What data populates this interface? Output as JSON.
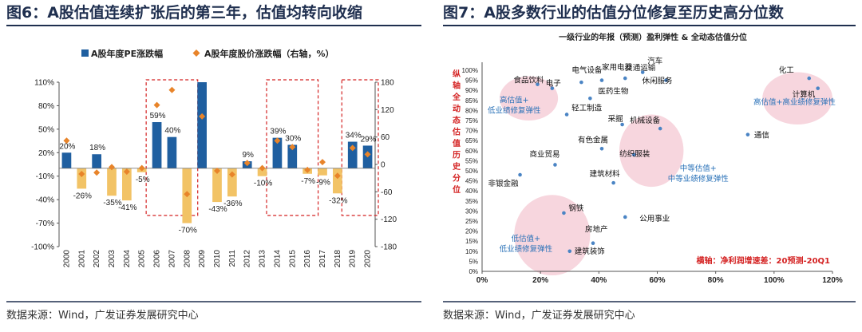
{
  "left": {
    "title": "图6：A股估值连续扩张后的第三年，估值均转向收缩",
    "source": "数据来源：Wind，广发证券发展研究中心",
    "chart_data": {
      "type": "bar",
      "categories": [
        "2000",
        "2001",
        "2002",
        "2003",
        "2004",
        "2005",
        "2006",
        "2007",
        "2008",
        "2009",
        "2010",
        "2011",
        "2012",
        "2013",
        "2014",
        "2015",
        "2016",
        "2017",
        "2018",
        "2019",
        "2020"
      ],
      "series": [
        {
          "name": "A股年度PE涨跌幅",
          "axis": "left",
          "color": "#1f5fa0",
          "values": [
            20,
            -26,
            18,
            -35,
            -41,
            -5,
            59,
            40,
            -70,
            110,
            -43,
            -36,
            9,
            -10,
            39,
            30,
            -7,
            -9,
            -32,
            34,
            29
          ],
          "value_labels": [
            "20%",
            "-26%",
            "18%",
            "-35%",
            "-41%",
            "-5%",
            "59%",
            "40%",
            "-70%",
            "",
            "-43%",
            "-36%",
            "9%",
            "-10%",
            "39%",
            "30%",
            "-7%",
            "-9%",
            "-32%",
            "34%",
            "29%"
          ]
        },
        {
          "name": "A股年度股价涨跌幅（右轴，%）",
          "axis": "right",
          "color": "#e8842a",
          "values": [
            52,
            -21,
            -18,
            -6,
            -16,
            -8,
            130,
            163,
            -65,
            105,
            -14,
            -22,
            3,
            -8,
            52,
            38,
            -12,
            5,
            -25,
            36,
            22
          ]
        }
      ],
      "left_axis": {
        "min": -100,
        "max": 110,
        "ticks": [
          "110%",
          "80%",
          "50%",
          "20%",
          "-10%",
          "-40%",
          "-70%",
          "-100%"
        ]
      },
      "right_axis": {
        "min": -180,
        "max": 180,
        "ticks": [
          "180",
          "120",
          "60",
          "0",
          "-60",
          "-120",
          "-180"
        ]
      },
      "legend_position": "top",
      "highlight_periods": [
        [
          "2006",
          "2008"
        ],
        [
          "2014",
          "2016"
        ],
        [
          "2019",
          "2020"
        ]
      ]
    }
  },
  "right": {
    "title": "图7：A股多数行业的估值分位修复至历史高分位数",
    "source": "数据来源：Wind，广发证券发展研究中心",
    "chart_data": {
      "type": "scatter",
      "title": "一级行业的年报（预测）盈利弹性 & 全动态估值分位",
      "xlabel": "横轴：净利润增速差：20预测-20Q1",
      "ylabel": "纵轴：全动态估值历史分位",
      "x_ticks": [
        "0%",
        "20%",
        "40%",
        "60%",
        "80%",
        "100%",
        "120%"
      ],
      "y_ticks": [
        "0%",
        "5%",
        "10%",
        "15%",
        "20%",
        "25%",
        "30%",
        "35%",
        "40%",
        "45%",
        "50%",
        "55%",
        "60%",
        "65%",
        "70%",
        "75%",
        "80%",
        "85%",
        "90%",
        "95%",
        "100%"
      ],
      "xlim": [
        0,
        1.2
      ],
      "ylim": [
        0,
        1.0
      ],
      "points": [
        {
          "name": "电气设备",
          "x": 0.34,
          "y": 0.94
        },
        {
          "name": "家用电器",
          "x": 0.41,
          "y": 0.95
        },
        {
          "name": "交通运输",
          "x": 0.49,
          "y": 0.96
        },
        {
          "name": "汽车",
          "x": 0.55,
          "y": 0.99
        },
        {
          "name": "休闲服务",
          "x": 0.63,
          "y": 0.95
        },
        {
          "name": "食品饮料",
          "x": 0.19,
          "y": 0.93
        },
        {
          "name": "电子",
          "x": 0.24,
          "y": 0.91
        },
        {
          "name": "医药生物",
          "x": 0.37,
          "y": 0.86
        },
        {
          "name": "轻工制造",
          "x": 0.29,
          "y": 0.78
        },
        {
          "name": "采掘",
          "x": 0.48,
          "y": 0.73
        },
        {
          "name": "机械设备",
          "x": 0.61,
          "y": 0.71
        },
        {
          "name": "有色金属",
          "x": 0.41,
          "y": 0.61
        },
        {
          "name": "纺织服装",
          "x": 0.52,
          "y": 0.58
        },
        {
          "name": "商业贸易",
          "x": 0.25,
          "y": 0.53
        },
        {
          "name": "非银金融",
          "x": 0.13,
          "y": 0.48
        },
        {
          "name": "建筑材料",
          "x": 0.45,
          "y": 0.44
        },
        {
          "name": "钢铁",
          "x": 0.28,
          "y": 0.29
        },
        {
          "name": "公用事业",
          "x": 0.49,
          "y": 0.27
        },
        {
          "name": "房地产",
          "x": 0.38,
          "y": 0.14
        },
        {
          "name": "建筑装饰",
          "x": 0.3,
          "y": 0.1
        },
        {
          "name": "化工",
          "x": 1.12,
          "y": 0.96
        },
        {
          "name": "计算机",
          "x": 1.15,
          "y": 0.91
        },
        {
          "name": "通信",
          "x": 0.91,
          "y": 0.68
        }
      ],
      "zones": [
        "高估值+低业绩修复弹性",
        "高估值+高业绩修复弹性",
        "中等估值+中等业绩修复弹性",
        "低估值+低业绩修复弹性"
      ],
      "point_color": "#4a84c4",
      "zone_color": "#f6cfd8"
    }
  }
}
